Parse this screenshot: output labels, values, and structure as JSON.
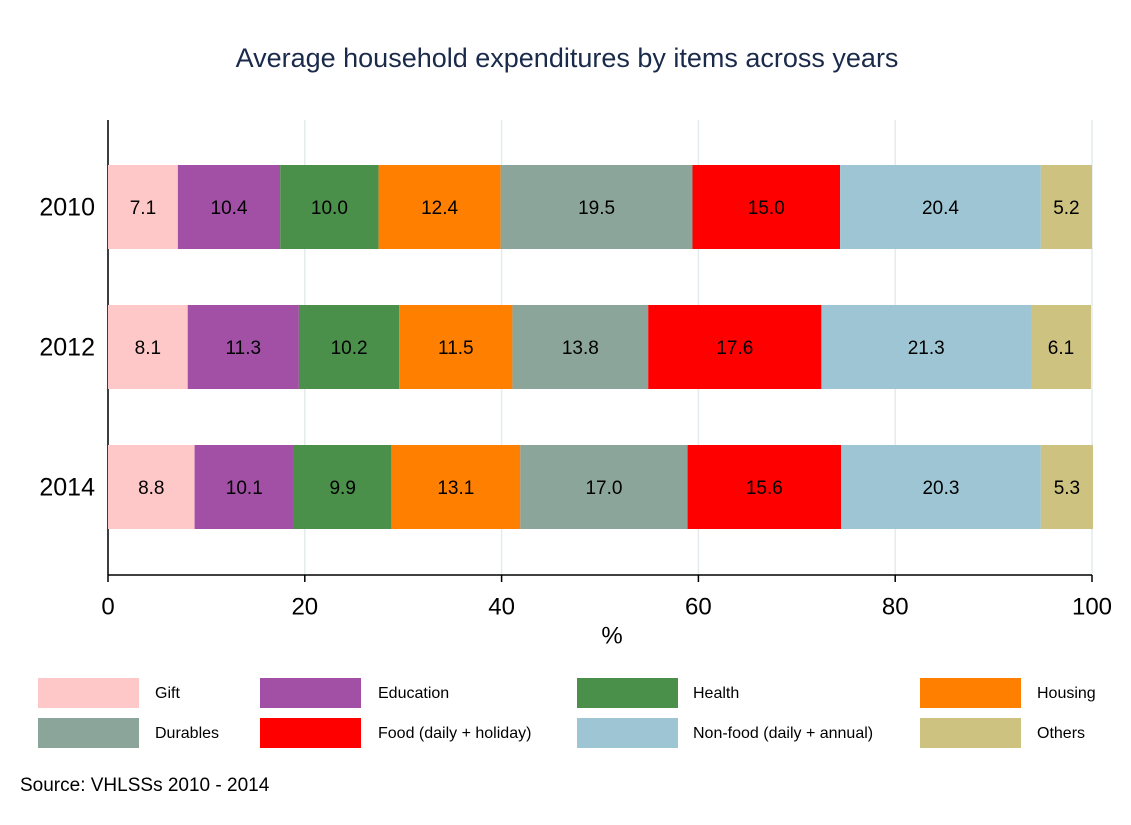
{
  "chart_data": {
    "type": "stacked_barh",
    "title": "Average household expenditures by items across years",
    "categories": [
      "2010",
      "2012",
      "2014"
    ],
    "series": [
      {
        "name": "Gift",
        "color": "#ffc8c8",
        "values": [
          7.1,
          8.1,
          8.8
        ],
        "value_labels": [
          "7.1",
          "8.1",
          "8.8"
        ]
      },
      {
        "name": "Education",
        "color": "#a24fa6",
        "values": [
          10.4,
          11.3,
          10.1
        ],
        "value_labels": [
          "10.4",
          "11.3",
          "10.1"
        ]
      },
      {
        "name": "Health",
        "color": "#4a8f4a",
        "values": [
          10.0,
          10.2,
          9.9
        ],
        "value_labels": [
          "10.0",
          "10.2",
          "9.9"
        ]
      },
      {
        "name": "Housing",
        "color": "#ff7f00",
        "values": [
          12.4,
          11.5,
          13.1
        ],
        "value_labels": [
          "12.4",
          "11.5",
          "13.1"
        ]
      },
      {
        "name": "Durables",
        "color": "#8ca59a",
        "values": [
          19.5,
          13.8,
          17.0
        ],
        "value_labels": [
          "19.5",
          "13.8",
          "17.0"
        ]
      },
      {
        "name": "Food (daily + holiday)",
        "color": "#ff0000",
        "values": [
          15.0,
          17.6,
          15.6
        ],
        "value_labels": [
          "15.0",
          "17.6",
          "15.6"
        ]
      },
      {
        "name": "Non-food (daily + annual)",
        "color": "#9ec5d4",
        "values": [
          20.4,
          21.3,
          20.3
        ],
        "value_labels": [
          "20.4",
          "21.3",
          "20.3"
        ]
      },
      {
        "name": "Others",
        "color": "#cdc27f",
        "values": [
          5.2,
          6.1,
          5.3
        ],
        "value_labels": [
          "5.2",
          "6.1",
          "5.3"
        ]
      }
    ],
    "xlabel": "%",
    "xlim": [
      0,
      100
    ],
    "xticks": [
      0,
      20,
      40,
      60,
      80,
      100
    ],
    "grid": true,
    "note": "Source: VHLSSs 2010 - 2014"
  }
}
